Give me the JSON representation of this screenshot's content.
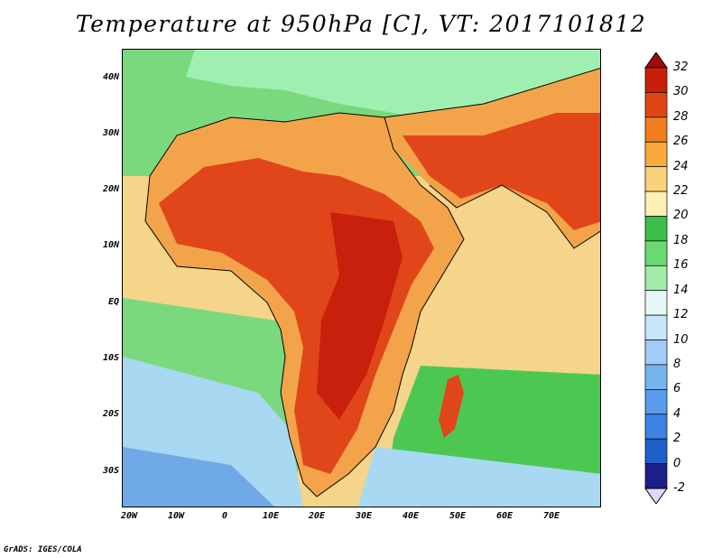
{
  "title": "Temperature at 950hPa [C], VT: 2017101812",
  "credit": "GrADS: IGES/COLA",
  "lat_labels": [
    "40N",
    "30N",
    "20N",
    "10N",
    "EQ",
    "10S",
    "20S",
    "30S"
  ],
  "lon_labels": [
    "20W",
    "10W",
    "0",
    "10E",
    "20E",
    "30E",
    "40E",
    "50E",
    "60E",
    "70E"
  ],
  "colorbar": {
    "levels": [
      "-2",
      "0",
      "2",
      "4",
      "6",
      "8",
      "10",
      "12",
      "14",
      "16",
      "18",
      "20",
      "22",
      "24",
      "26",
      "28",
      "30",
      "32"
    ],
    "colors": [
      "#e0d8f8",
      "#1c1e8a",
      "#1e5fc8",
      "#3c82e0",
      "#5a9cec",
      "#78b4f0",
      "#a0ccf6",
      "#c8e6fa",
      "#e6f8f6",
      "#a0ecaa",
      "#6ad873",
      "#3cbe48",
      "#fcf0b4",
      "#fad279",
      "#f8aa3c",
      "#f07e1e",
      "#e04614",
      "#c81e0a",
      "#a00a0a"
    ]
  },
  "map_colors": {
    "ocean_north": "#7ad97e",
    "mediterranean": "#9ff0b0",
    "atlantic_warm": "#f5d58a",
    "atlantic_cool": "#7ad97e",
    "south_atlantic": "#a8d8f2",
    "south_atlantic_deep": "#6fa9e8",
    "indian_ocean": "#f5d58a",
    "indian_south": "#4cc852",
    "land_hot": "#e0461a",
    "land_very_hot": "#c8200c",
    "land_warm": "#f3a44a",
    "land_mild": "#f8d48a"
  }
}
